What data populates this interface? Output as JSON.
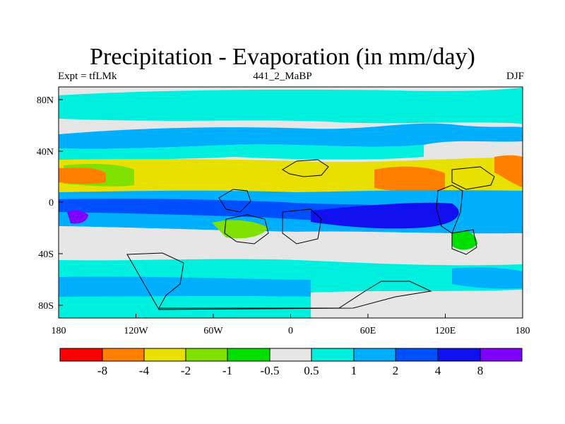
{
  "chart_data": {
    "type": "heatmap",
    "title": "Precipitation - Evaporation (in mm/day)",
    "left_label": "Expt = tfLMk",
    "center_label": "441_2_MaBP",
    "right_label": "DJF",
    "x_ticks": [
      "180",
      "120W",
      "60W",
      "0",
      "60E",
      "120E",
      "180"
    ],
    "y_ticks": [
      "80N",
      "40N",
      "0",
      "40S",
      "80S"
    ],
    "xlim": [
      -180,
      180
    ],
    "ylim": [
      -90,
      90
    ],
    "colorbar": {
      "labels": [
        "-8",
        "-4",
        "-2",
        "-1",
        "-0.5",
        "0.5",
        "1",
        "2",
        "4",
        "8"
      ],
      "colors": [
        "#ff0000",
        "#ff8000",
        "#e8e000",
        "#80e000",
        "#00e000",
        "#e6e6e6",
        "#00f0e0",
        "#00b0ff",
        "#0050ff",
        "#1010f0",
        "#8000ff"
      ]
    }
  }
}
